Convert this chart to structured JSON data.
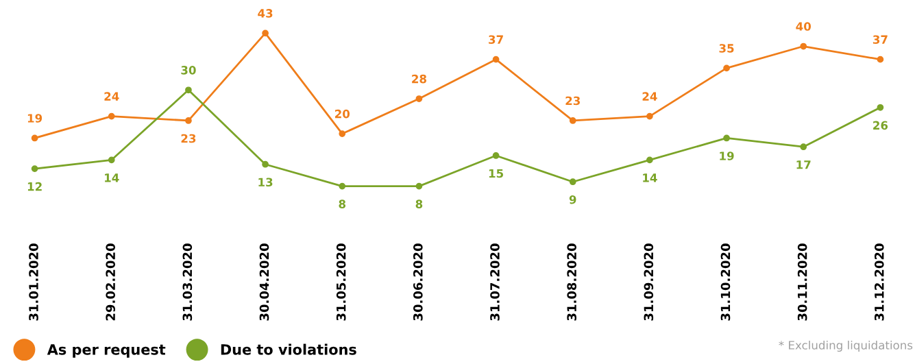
{
  "chart_data": {
    "type": "line",
    "categories": [
      "31.01.2020",
      "29.02.2020",
      "31.03.2020",
      "30.04.2020",
      "31.05.2020",
      "30.06.2020",
      "31.07.2020",
      "31.08.2020",
      "31.09.2020",
      "31.10.2020",
      "30.11.2020",
      "31.12.2020"
    ],
    "series": [
      {
        "name": "As per request",
        "color": "#ef7d1a",
        "values": [
          19,
          24,
          23,
          43,
          20,
          28,
          37,
          23,
          24,
          35,
          40,
          37
        ]
      },
      {
        "name": "Due to violations",
        "color": "#7ba428",
        "values": [
          12,
          14,
          30,
          13,
          8,
          8,
          15,
          9,
          14,
          19,
          17,
          26
        ]
      }
    ],
    "data_labels": true,
    "grid": false,
    "legend": "bottom left",
    "marker": "circle",
    "line_style": "solid",
    "annotations": [
      "* Excluding liquidations"
    ]
  }
}
